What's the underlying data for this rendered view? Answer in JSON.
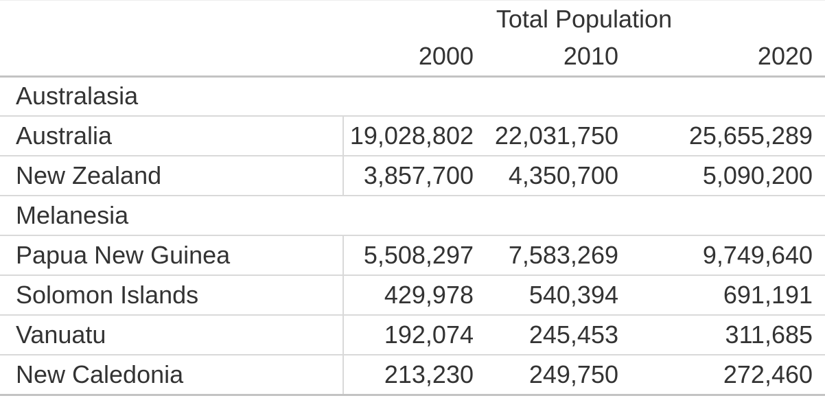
{
  "colors": {
    "background": "#ffffff",
    "text": "#333333",
    "rule_strong": "#c3c3c3",
    "rule_light": "#d9d9d9"
  },
  "table": {
    "title": "Total Population",
    "year_columns": [
      "2000",
      "2010",
      "2020"
    ],
    "rows": [
      {
        "type": "section",
        "label": "Australasia"
      },
      {
        "type": "data",
        "label": "Australia",
        "values": [
          "19,028,802",
          "22,031,750",
          "25,655,289"
        ]
      },
      {
        "type": "data",
        "label": "New Zealand",
        "values": [
          "3,857,700",
          "4,350,700",
          "5,090,200"
        ]
      },
      {
        "type": "section",
        "label": "Melanesia"
      },
      {
        "type": "data",
        "label": "Papua New Guinea",
        "values": [
          "5,508,297",
          "7,583,269",
          "9,749,640"
        ]
      },
      {
        "type": "data",
        "label": "Solomon Islands",
        "values": [
          "429,978",
          "540,394",
          "691,191"
        ]
      },
      {
        "type": "data",
        "label": "Vanuatu",
        "values": [
          "192,074",
          "245,453",
          "311,685"
        ]
      },
      {
        "type": "data",
        "label": "New Caledonia",
        "values": [
          "213,230",
          "249,750",
          "272,460"
        ]
      }
    ]
  },
  "chart_data": {
    "type": "table",
    "title": "Total Population",
    "columns": [
      "2000",
      "2010",
      "2020"
    ],
    "groups": [
      {
        "name": "Australasia",
        "rows": [
          {
            "country": "Australia",
            "values": [
              19028802,
              22031750,
              25655289
            ]
          },
          {
            "country": "New Zealand",
            "values": [
              3857700,
              4350700,
              5090200
            ]
          }
        ]
      },
      {
        "name": "Melanesia",
        "rows": [
          {
            "country": "Papua New Guinea",
            "values": [
              5508297,
              7583269,
              9749640
            ]
          },
          {
            "country": "Solomon Islands",
            "values": [
              429978,
              540394,
              691191
            ]
          },
          {
            "country": "Vanuatu",
            "values": [
              192074,
              245453,
              311685
            ]
          },
          {
            "country": "New Caledonia",
            "values": [
              213230,
              249750,
              272460
            ]
          }
        ]
      }
    ]
  }
}
